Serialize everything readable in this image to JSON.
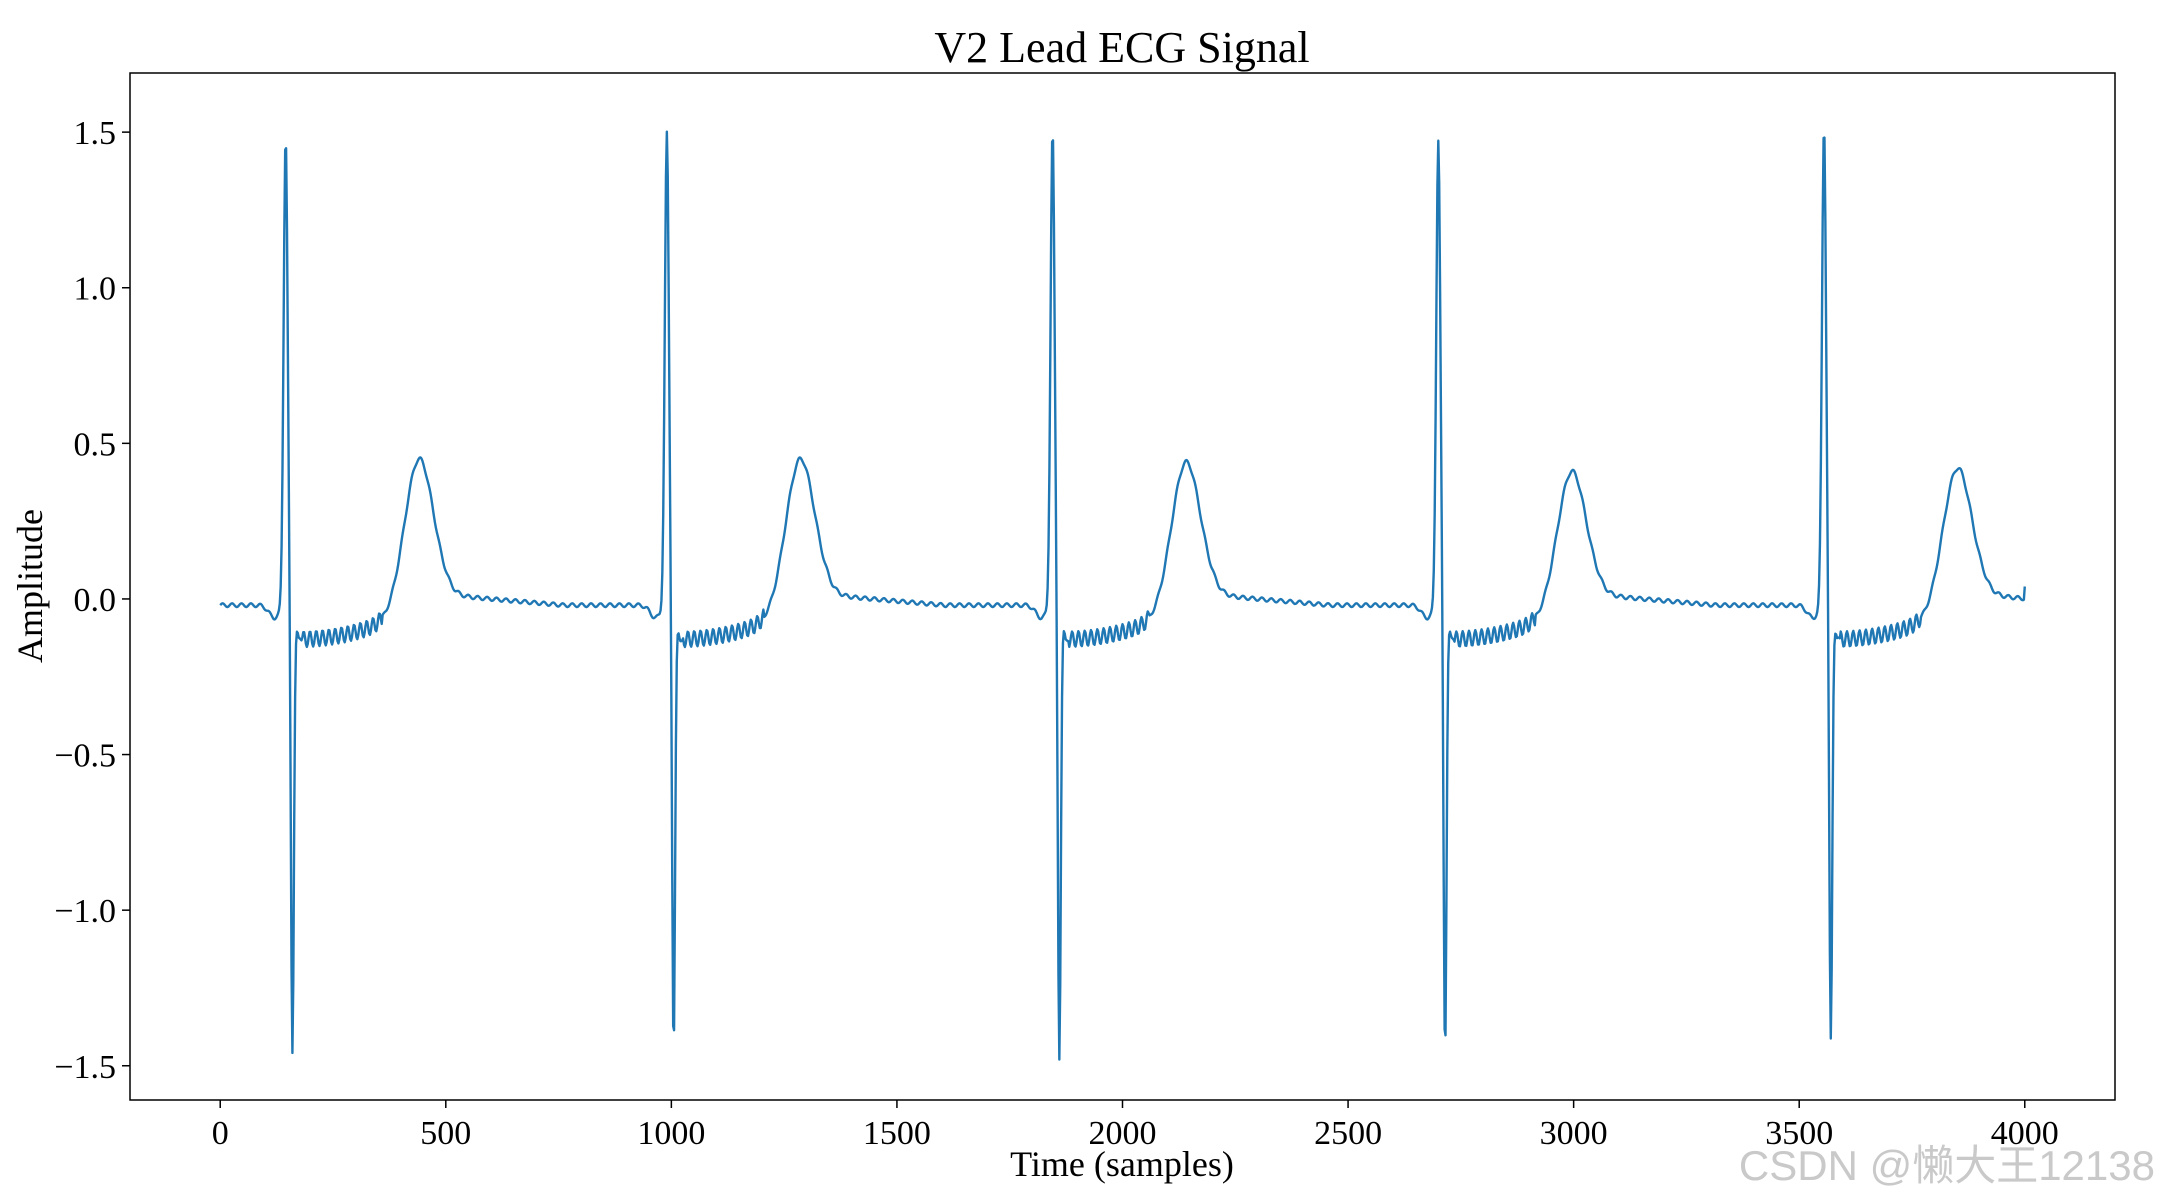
{
  "watermark": "CSDN @懒大王12138",
  "chart_data": {
    "type": "line",
    "title": "V2 Lead ECG Signal",
    "xlabel": "Time (samples)",
    "ylabel": "Amplitude",
    "xlim": [
      -200,
      4200
    ],
    "ylim": [
      -1.61,
      1.69
    ],
    "xticks": [
      0,
      500,
      1000,
      1500,
      2000,
      2500,
      3000,
      3500,
      4000
    ],
    "xtick_labels": [
      "0",
      "500",
      "1000",
      "1500",
      "2000",
      "2500",
      "3000",
      "3500",
      "4000"
    ],
    "yticks": [
      -1.5,
      -1.0,
      -0.5,
      0.0,
      0.5,
      1.0,
      1.5
    ],
    "ytick_labels": [
      "−1.5",
      "−1.0",
      "−0.5",
      "0.0",
      "0.5",
      "1.0",
      "1.5"
    ],
    "grid": false,
    "legend": "none",
    "series_color": "#1f77b4",
    "series": [
      {
        "beat_r_peaks": [
          {
            "x": 145,
            "y": 1.51
          },
          {
            "x": 990,
            "y": 1.52
          },
          {
            "x": 1845,
            "y": 1.53
          },
          {
            "x": 2700,
            "y": 1.5
          },
          {
            "x": 3555,
            "y": 1.55
          }
        ],
        "beat_s_troughs": [
          {
            "x": 160,
            "y": -1.44
          },
          {
            "x": 1005,
            "y": -1.43
          },
          {
            "x": 1860,
            "y": -1.46
          },
          {
            "x": 2715,
            "y": -1.44
          },
          {
            "x": 3570,
            "y": -1.4
          }
        ],
        "beat_t_peaks": [
          {
            "x": 440,
            "y": 0.47
          },
          {
            "x": 1285,
            "y": 0.47
          },
          {
            "x": 2140,
            "y": 0.46
          },
          {
            "x": 2995,
            "y": 0.43
          },
          {
            "x": 3850,
            "y": 0.44
          }
        ],
        "x_start": 0,
        "x_end": 4000,
        "end_value": 0.04
      }
    ]
  }
}
